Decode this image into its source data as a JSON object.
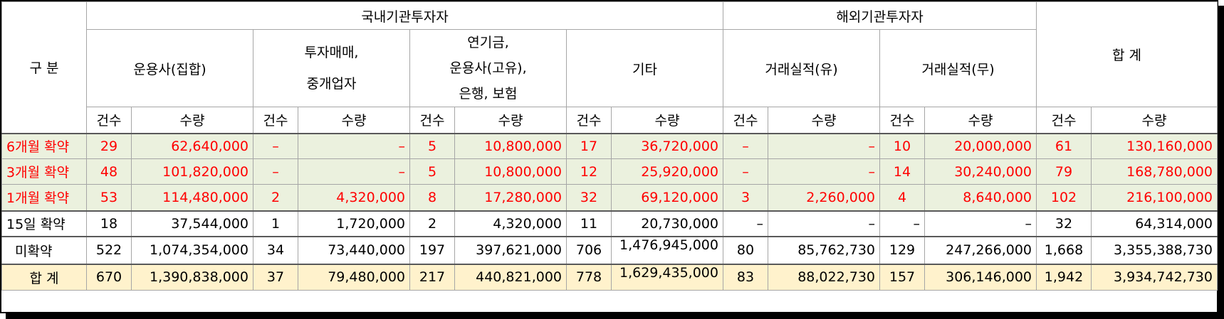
{
  "header": {
    "category": "구 분",
    "domestic": "국내기관투자자",
    "foreign": "해외기관투자자",
    "total": "합 계",
    "groups": {
      "asset_mgr_collective": "운용사(집합)",
      "broker_line1": "투자매매,",
      "broker_line2": "중개업자",
      "pension_line1": "연기금,",
      "pension_line2": "운용사(고유),",
      "pension_line3": "은행, 보험",
      "other": "기타",
      "record_yes": "거래실적(유)",
      "record_no": "거래실적(무)"
    },
    "count": "건수",
    "quantity": "수량"
  },
  "rows": [
    {
      "label": "6개월 확약",
      "values": [
        "29",
        "62,640,000",
        "–",
        "–",
        "5",
        "10,800,000",
        "17",
        "36,720,000",
        "–",
        "–",
        "10",
        "20,000,000",
        "61",
        "130,160,000"
      ]
    },
    {
      "label": "3개월 확약",
      "values": [
        "48",
        "101,820,000",
        "–",
        "–",
        "5",
        "10,800,000",
        "12",
        "25,920,000",
        "–",
        "–",
        "14",
        "30,240,000",
        "79",
        "168,780,000"
      ]
    },
    {
      "label": "1개월 확약",
      "values": [
        "53",
        "114,480,000",
        "2",
        "4,320,000",
        "8",
        "17,280,000",
        "32",
        "69,120,000",
        "3",
        "2,260,000",
        "4",
        "8,640,000",
        "102",
        "216,100,000"
      ]
    },
    {
      "label": "15일 확약",
      "values": [
        "18",
        "37,544,000",
        "1",
        "1,720,000",
        "2",
        "4,320,000",
        "11",
        "20,730,000",
        "–",
        "–",
        "–",
        "–",
        "32",
        "64,314,000"
      ]
    },
    {
      "label": "미확약",
      "values": [
        "522",
        "1,074,354,000",
        "34",
        "73,440,000",
        "197",
        "397,621,000",
        "706",
        "1,476,945,000",
        "80",
        "85,762,730",
        "129",
        "247,266,000",
        "1,668",
        "3,355,388,730"
      ]
    },
    {
      "label": "합 계",
      "values": [
        "670",
        "1,390,838,000",
        "37",
        "79,480,000",
        "217",
        "440,821,000",
        "778",
        "1,629,435,000",
        "83",
        "88,022,730",
        "157",
        "306,146,000",
        "1,942",
        "3,934,742,730"
      ]
    }
  ]
}
